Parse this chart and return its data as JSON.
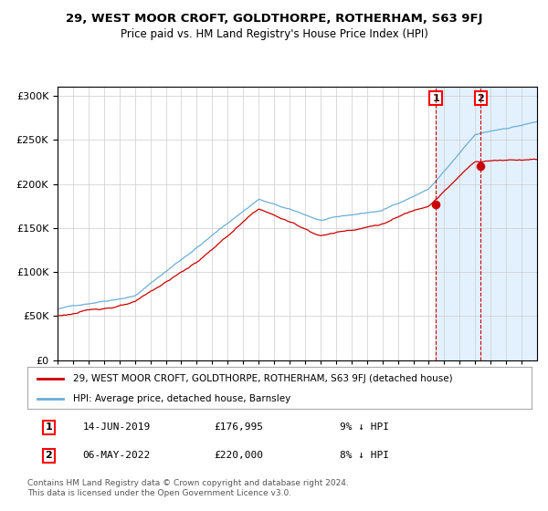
{
  "title": "29, WEST MOOR CROFT, GOLDTHORPE, ROTHERHAM, S63 9FJ",
  "subtitle": "Price paid vs. HM Land Registry's House Price Index (HPI)",
  "hpi_label": "HPI: Average price, detached house, Barnsley",
  "property_label": "29, WEST MOOR CROFT, GOLDTHORPE, ROTHERHAM, S63 9FJ (detached house)",
  "transaction1_date": "14-JUN-2019",
  "transaction1_price": 176995,
  "transaction1_hpi": "9% ↓ HPI",
  "transaction2_date": "06-MAY-2022",
  "transaction2_price": 220000,
  "transaction2_hpi": "8% ↓ HPI",
  "t1_year": 2019.45,
  "t2_year": 2022.35,
  "ylim": [
    0,
    310000
  ],
  "start_year": 1995,
  "end_year": 2026,
  "hpi_color": "#6baed6",
  "property_color": "#cc0000",
  "vline_color": "#cc0000",
  "shade_color": "#ddeeff",
  "background_color": "#ffffff",
  "grid_color": "#cccccc",
  "footer_text": "Contains HM Land Registry data © Crown copyright and database right 2024.\nThis data is licensed under the Open Government Licence v3.0."
}
